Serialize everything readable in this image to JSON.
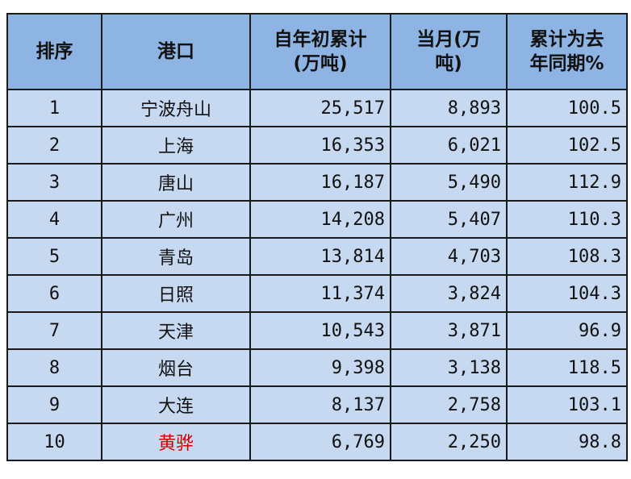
{
  "colors": {
    "header_bg": "#8db4e2",
    "row_bg": "#c6d9f0",
    "highlight_text": "#d00000"
  },
  "headers": [
    "排序",
    "港口",
    "自年初累计\n(万吨)",
    "当月(万\n吨)",
    "累计为去\n年同期%"
  ],
  "rows": [
    {
      "rank": "1",
      "port": "宁波舟山",
      "ytd": "25,517",
      "month": "8,893",
      "yoy": "100.5"
    },
    {
      "rank": "2",
      "port": "上海",
      "ytd": "16,353",
      "month": "6,021",
      "yoy": "102.5"
    },
    {
      "rank": "3",
      "port": "唐山",
      "ytd": "16,187",
      "month": "5,490",
      "yoy": "112.9"
    },
    {
      "rank": "4",
      "port": "广州",
      "ytd": "14,208",
      "month": "5,407",
      "yoy": "110.3"
    },
    {
      "rank": "5",
      "port": "青岛",
      "ytd": "13,814",
      "month": "4,703",
      "yoy": "108.3"
    },
    {
      "rank": "6",
      "port": "日照",
      "ytd": "11,374",
      "month": "3,824",
      "yoy": "104.3"
    },
    {
      "rank": "7",
      "port": "天津",
      "ytd": "10,543",
      "month": "3,871",
      "yoy": "96.9"
    },
    {
      "rank": "8",
      "port": "烟台",
      "ytd": "9,398",
      "month": "3,138",
      "yoy": "118.5"
    },
    {
      "rank": "9",
      "port": "大连",
      "ytd": "8,137",
      "month": "2,758",
      "yoy": "103.1"
    },
    {
      "rank": "10",
      "port": "黄骅",
      "ytd": "6,769",
      "month": "2,250",
      "yoy": "98.8",
      "highlight": true
    }
  ]
}
